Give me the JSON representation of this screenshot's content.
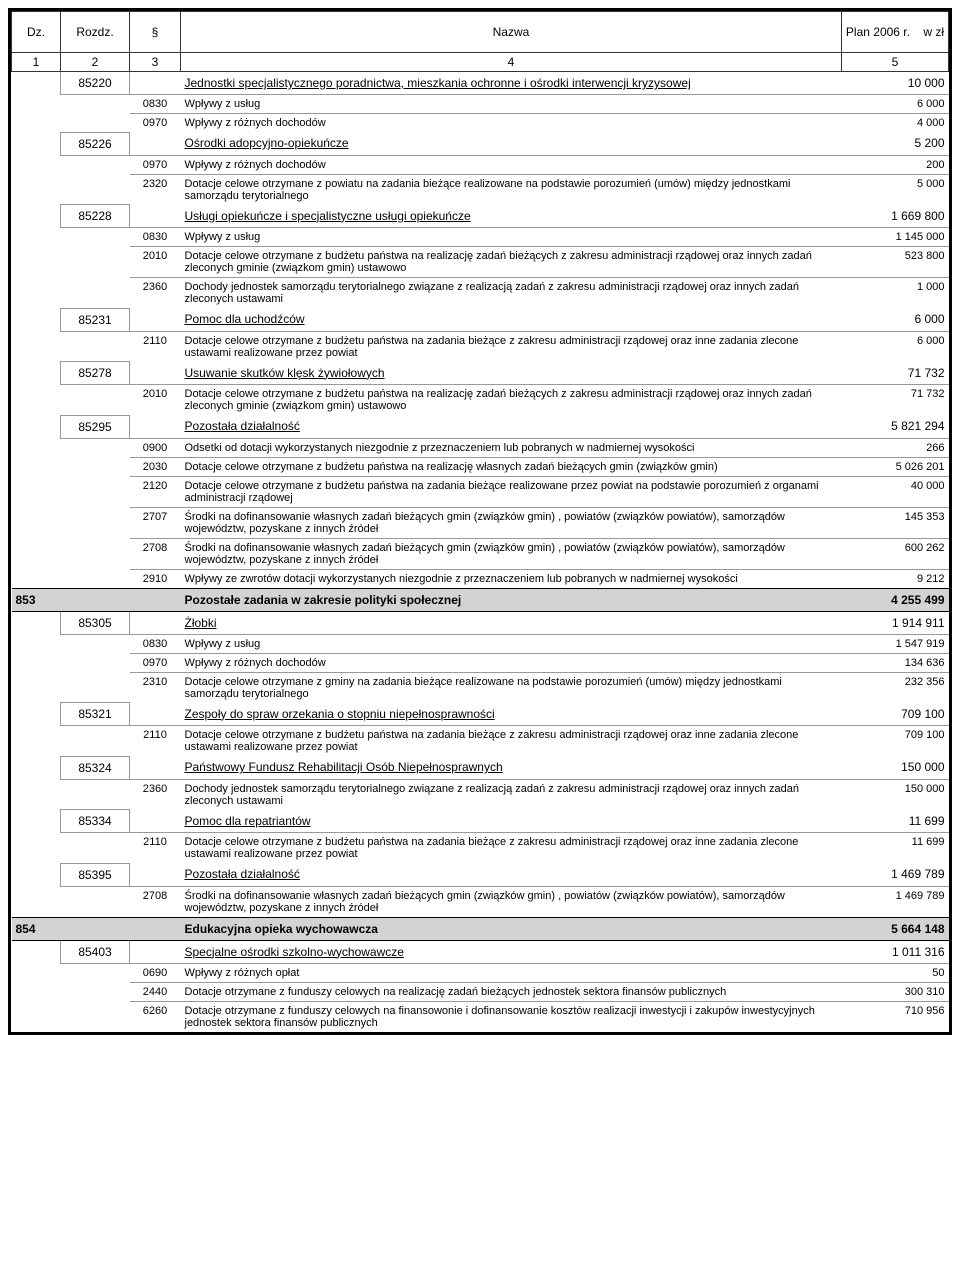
{
  "header": {
    "dz": "Dz.",
    "rozdz": "Rozdz.",
    "par": "§",
    "nazwa": "Nazwa",
    "plan": "Plan 2006 r.",
    "unit": "w zł",
    "c1": "1",
    "c2": "2",
    "c3": "3",
    "c4": "4",
    "c5": "5"
  },
  "rows": [
    {
      "type": "rozdz",
      "rozdz": "85220",
      "name": "Jednostki specjalistycznego poradnictwa, mieszkania ochronne i ośrodki interwencji kryzysowej",
      "amt": "10 000"
    },
    {
      "type": "par",
      "par": "0830",
      "name": "Wpływy z usług",
      "amt": "6 000"
    },
    {
      "type": "par",
      "par": "0970",
      "name": "Wpływy z różnych dochodów",
      "amt": "4 000"
    },
    {
      "type": "rozdz",
      "rozdz": "85226",
      "name": "Ośrodki adopcyjno-opiekuńcze",
      "amt": "5 200"
    },
    {
      "type": "par",
      "par": "0970",
      "name": "Wpływy z różnych dochodów",
      "amt": "200"
    },
    {
      "type": "par",
      "par": "2320",
      "name": "Dotacje celowe otrzymane z powiatu na zadania bieżące realizowane na podstawie porozumień (umów) między jednostkami samorządu terytorialnego",
      "amt": "5 000"
    },
    {
      "type": "rozdz",
      "rozdz": "85228",
      "name": "Usługi opiekuńcze i specjalistyczne usługi opiekuńcze",
      "amt": "1 669 800"
    },
    {
      "type": "par",
      "par": "0830",
      "name": "Wpływy z usług",
      "amt": "1 145 000"
    },
    {
      "type": "par",
      "par": "2010",
      "name": "Dotacje celowe otrzymane z budżetu państwa na realizację zadań bieżących z zakresu administracji rządowej oraz innych zadań zleconych gminie (związkom gmin) ustawowo",
      "amt": "523 800"
    },
    {
      "type": "par",
      "par": "2360",
      "name": "Dochody jednostek samorządu  terytorialnego związane z realizacją zadań z zakresu administracji rządowej oraz innych zadań zleconych ustawami",
      "amt": "1 000"
    },
    {
      "type": "rozdz",
      "rozdz": "85231",
      "name": "Pomoc dla uchodźców",
      "amt": "6 000"
    },
    {
      "type": "par",
      "par": "2110",
      "name": "Dotacje celowe otrzymane z budżetu państwa na zadania bieżące z zakresu administracji rządowej oraz inne zadania zlecone ustawami realizowane przez powiat",
      "amt": "6 000"
    },
    {
      "type": "rozdz",
      "rozdz": "85278",
      "name": "Usuwanie skutków klęsk żywiołowych",
      "amt": "71 732"
    },
    {
      "type": "par",
      "par": "2010",
      "name": "Dotacje celowe otrzymane z budżetu państwa na realizację zadań bieżących z zakresu administracji rządowej oraz innych zadań zleconych gminie (związkom gmin) ustawowo",
      "amt": "71 732"
    },
    {
      "type": "rozdz",
      "rozdz": "85295",
      "name": "Pozostała działalność",
      "amt": "5 821 294"
    },
    {
      "type": "par",
      "par": "0900",
      "name": "Odsetki od dotacji wykorzystanych niezgodnie z przeznaczeniem lub pobranych w nadmiernej wysokości",
      "amt": "266"
    },
    {
      "type": "par",
      "par": "2030",
      "name": "Dotacje celowe otrzymane  z budżetu państwa na realizację własnych zadań bieżących gmin (związków gmin)",
      "amt": "5 026 201"
    },
    {
      "type": "par",
      "par": "2120",
      "name": "Dotacje celowe otrzymane  z budżetu państwa na zadania bieżące realizowane przez powiat na podstawie porozumień z organami administracji rządowej",
      "amt": "40 000"
    },
    {
      "type": "par",
      "par": "2707",
      "name": "Środki na dofinansowanie własnych zadań bieżących gmin (związków gmin) , powiatów (związków powiatów), samorządów województw, pozyskane z innych źródeł",
      "amt": "145 353"
    },
    {
      "type": "par",
      "par": "2708",
      "name": "Środki na dofinansowanie własnych zadań bieżących gmin (związków gmin) , powiatów (związków powiatów), samorządów województw, pozyskane z innych źródeł",
      "amt": "600 262"
    },
    {
      "type": "par",
      "par": "2910",
      "name": "Wpływy ze zwrotów dotacji wykorzystanych niezgodnie z przeznaczeniem lub pobranych w nadmiernej wysokości",
      "amt": "9 212"
    },
    {
      "type": "dz",
      "dz": "853",
      "name": "Pozostałe zadania w zakresie polityki społecznej",
      "amt": "4 255 499"
    },
    {
      "type": "rozdz",
      "rozdz": "85305",
      "name": "Żłobki",
      "amt": "1 914 911"
    },
    {
      "type": "par",
      "par": "0830",
      "name": "Wpływy z usług",
      "amt": "1 547 919"
    },
    {
      "type": "par",
      "par": "0970",
      "name": "Wpływy z różnych dochodów",
      "amt": "134 636"
    },
    {
      "type": "par",
      "par": "2310",
      "name": "Dotacje celowe otrzymane z gminy na zadania bieżące realizowane na podstawie porozumień (umów) między jednostkami samorządu terytorialnego",
      "amt": "232 356"
    },
    {
      "type": "rozdz",
      "rozdz": "85321",
      "name": "Zespoły do spraw orzekania o stopniu niepełnosprawności",
      "amt": "709 100"
    },
    {
      "type": "par",
      "par": "2110",
      "name": "Dotacje celowe otrzymane z budżetu państwa na zadania bieżące z zakresu administracji rządowej oraz inne zadania zlecone ustawami realizowane przez powiat",
      "amt": "709 100"
    },
    {
      "type": "rozdz",
      "rozdz": "85324",
      "name": "Państwowy Fundusz Rehabilitacji Osób Niepełnosprawnych",
      "amt": "150 000"
    },
    {
      "type": "par",
      "par": "2360",
      "name": "Dochody jednostek samorządu  terytorialnego związane z realizacją zadań z zakresu administracji rządowej oraz innych zadań zleconych ustawami",
      "amt": "150 000"
    },
    {
      "type": "rozdz",
      "rozdz": "85334",
      "name": "Pomoc dla repatriantów",
      "amt": "11 699"
    },
    {
      "type": "par",
      "par": "2110",
      "name": "Dotacje celowe otrzymane z budżetu państwa na zadania bieżące z zakresu administracji rządowej oraz inne zadania zlecone ustawami realizowane przez powiat",
      "amt": "11 699"
    },
    {
      "type": "rozdz",
      "rozdz": "85395",
      "name": "Pozostała działalność",
      "amt": "1 469 789"
    },
    {
      "type": "par",
      "par": "2708",
      "name": "Środki na dofinansowanie własnych zadań bieżących gmin (związków gmin) , powiatów (związków powiatów), samorządów województw, pozyskane z innych źródeł",
      "amt": "1 469 789"
    },
    {
      "type": "dz",
      "dz": "854",
      "name": "Edukacyjna opieka wychowawcza",
      "amt": "5 664 148"
    },
    {
      "type": "rozdz",
      "rozdz": "85403",
      "name": "Specjalne ośrodki szkolno-wychowawcze",
      "amt": "1 011 316"
    },
    {
      "type": "par",
      "par": "0690",
      "name": "Wpływy z różnych opłat",
      "amt": "50"
    },
    {
      "type": "par",
      "par": "2440",
      "name": "Dotacje otrzymane z funduszy celowych na realizację zadań bieżących jednostek sektora finansów publicznych",
      "amt": "300 310"
    },
    {
      "type": "par",
      "par": "6260",
      "name": "Dotacje otrzymane z funduszy celowych  na finansowonie i dofinansowanie kosztów realizacji inwestycji i zakupów inwestycyjnych  jednostek sektora finansów publicznych",
      "amt": "710 956"
    }
  ]
}
